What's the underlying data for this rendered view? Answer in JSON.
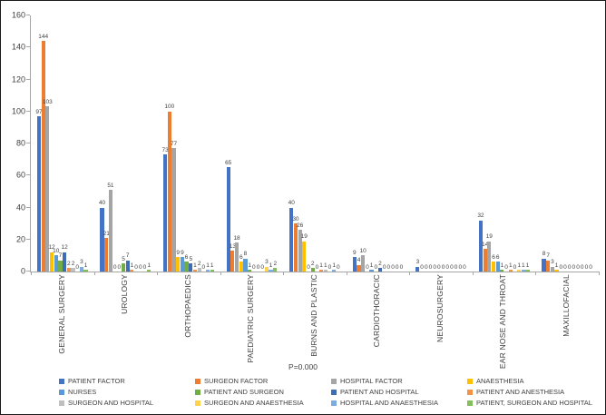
{
  "chart_data": {
    "type": "bar",
    "title": "",
    "xlabel": "",
    "ylabel": "",
    "ylim": [
      0,
      160
    ],
    "yticks": [
      0,
      20,
      40,
      60,
      80,
      100,
      120,
      140,
      160
    ],
    "grid": false,
    "legend_position": "bottom",
    "annotation": "P=0.000",
    "categories": [
      "GENERAL SURGERY",
      "UROLOGY",
      "ORTHOPAEDICS",
      "PAEDIATRIC SURGERY",
      "BURNS AND PLASTIC",
      "CARDIOTHORACIC",
      "NEUROSURGERY",
      "EAR NOSE AND THROAT",
      "MAXILLOFACIAL"
    ],
    "series": [
      {
        "name": "PATIENT FACTOR",
        "color": "#4472C4",
        "values": [
          97,
          40,
          73,
          65,
          40,
          9,
          3,
          32,
          8
        ]
      },
      {
        "name": "SURGEON FACTOR",
        "color": "#ED7D31",
        "values": [
          144,
          21,
          100,
          13,
          30,
          4,
          0,
          14,
          7
        ]
      },
      {
        "name": "HOSPITAL FACTOR",
        "color": "#A5A5A5",
        "values": [
          103,
          51,
          77,
          18,
          26,
          10,
          0,
          19,
          3
        ]
      },
      {
        "name": "ANAESTHESIA",
        "color": "#FFC000",
        "values": [
          12,
          0,
          9,
          6,
          19,
          0,
          0,
          6,
          1
        ]
      },
      {
        "name": "NURSES",
        "color": "#5B9BD5",
        "values": [
          10,
          0,
          9,
          8,
          0,
          1,
          0,
          6,
          0
        ]
      },
      {
        "name": "PATIENT AND SURGEON",
        "color": "#70AD47",
        "values": [
          7,
          5,
          6,
          1,
          2,
          0,
          0,
          1,
          0
        ]
      },
      {
        "name": "PATIENT AND HOSPITAL",
        "color": "#3E6CB5",
        "values": [
          12,
          7,
          5,
          0,
          0,
          2,
          0,
          0,
          0
        ]
      },
      {
        "name": "PATIENT AND ANESTHESIA",
        "color": "#F2934B",
        "values": [
          2,
          1,
          1,
          0,
          1,
          0,
          0,
          1,
          0
        ]
      },
      {
        "name": "SURGEON AND HOSPITAL",
        "color": "#BFBFBF",
        "values": [
          2,
          0,
          2,
          0,
          1,
          0,
          0,
          0,
          0
        ]
      },
      {
        "name": "SURGEON AND ANAESTHESIA",
        "color": "#FFD34D",
        "values": [
          0,
          0,
          0,
          3,
          0,
          0,
          0,
          1,
          0
        ]
      },
      {
        "name": "HOSPITAL AND ANAESTHESIA",
        "color": "#7CADDE",
        "values": [
          3,
          0,
          1,
          1,
          1,
          0,
          0,
          1,
          0
        ]
      },
      {
        "name": "PATIENT, SURGEON AND HOSPITAL",
        "color": "#85BE5C",
        "values": [
          1,
          1,
          1,
          2,
          0,
          0,
          0,
          1,
          0
        ]
      }
    ]
  }
}
